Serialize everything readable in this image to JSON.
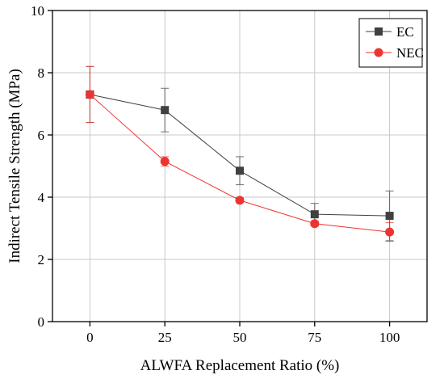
{
  "chart_data": {
    "type": "line",
    "xlabel": "ALWFA Replacement Ratio (%)",
    "ylabel": "Indirect Tensile Strength (MPa)",
    "x": [
      0,
      25,
      50,
      75,
      100
    ],
    "xticks": [
      "0",
      "25",
      "50",
      "75",
      "100"
    ],
    "yticks": [
      "0",
      "2",
      "4",
      "6",
      "8",
      "10"
    ],
    "xlim": [
      -12.5,
      112.5
    ],
    "ylim": [
      0,
      10
    ],
    "grid": true,
    "legend_position": "top-right",
    "series": [
      {
        "name": "EC",
        "color": "#404040",
        "marker": "square",
        "values": [
          7.3,
          6.8,
          4.85,
          3.45,
          3.4
        ],
        "err": [
          0.9,
          0.7,
          0.45,
          0.35,
          0.8
        ]
      },
      {
        "name": "NEC",
        "color": "#ee3333",
        "marker": "circle",
        "values": [
          7.3,
          5.15,
          3.9,
          3.15,
          2.88
        ],
        "err": [
          0.9,
          0.15,
          0.08,
          0.08,
          0.3
        ]
      }
    ]
  }
}
